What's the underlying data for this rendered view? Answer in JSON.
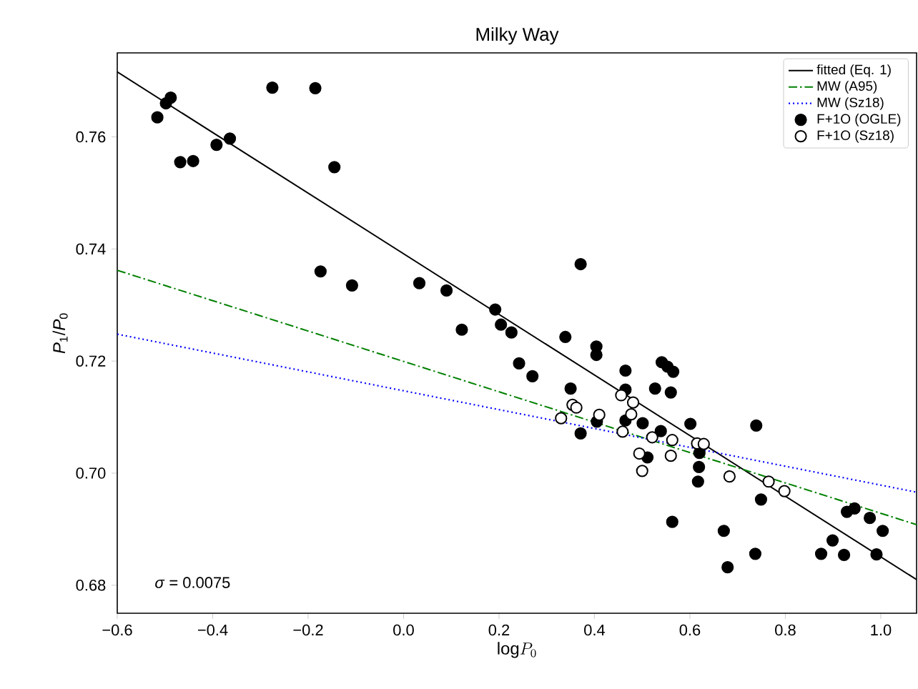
{
  "chart_data": {
    "type": "scatter",
    "title": "Milky Way",
    "xlabel": "\\mathrm{log}P_{0}",
    "ylabel": "*P*$_{1}$/*P*$_{0}$",
    "xlim": [
      -0.6,
      1.075
    ],
    "ylim": [
      0.675,
      0.775
    ],
    "xticks": [
      {
        "value": -0.6,
        "label": "−0.6"
      },
      {
        "value": -0.4,
        "label": "−0.4"
      },
      {
        "value": -0.2,
        "label": "−0.2"
      },
      {
        "value": 0.0,
        "label": "0.0"
      },
      {
        "value": 0.2,
        "label": "0.2"
      },
      {
        "value": 0.4,
        "label": "0.4"
      },
      {
        "value": 0.6,
        "label": "0.6"
      },
      {
        "value": 0.8,
        "label": "0.8"
      },
      {
        "value": 1.0,
        "label": "1.0"
      }
    ],
    "yticks": [
      {
        "value": 0.68,
        "label": "0.68"
      },
      {
        "value": 0.7,
        "label": "0.70"
      },
      {
        "value": 0.72,
        "label": "0.72"
      },
      {
        "value": 0.74,
        "label": "0.74"
      },
      {
        "value": 0.76,
        "label": "0.76"
      }
    ],
    "legend": "top right",
    "grid": false,
    "annotations": [
      "*σ* = 0.0075"
    ],
    "series": [
      {
        "name": "fitted (Eq. 1)",
        "type": "line",
        "color": "#000000",
        "line_style": "solid",
        "marker": "none",
        "x": [
          -0.6,
          1.075
        ],
        "values": [
          0.7716,
          0.681
        ]
      },
      {
        "name": "MW (A95)",
        "type": "line",
        "color": "#008000",
        "line_style": "dashdot",
        "marker": "none",
        "x": [
          -0.6,
          1.075
        ],
        "values": [
          0.7362,
          0.6908
        ]
      },
      {
        "name": "MW (Sz18)",
        "type": "line",
        "color": "#0000ff",
        "line_style": "dotted",
        "marker": "none",
        "x": [
          -0.6,
          1.075
        ],
        "values": [
          0.7248,
          0.6966
        ]
      },
      {
        "name": "F+1O (OGLE)",
        "color": "#000000",
        "marker": "circle",
        "x": [
          -0.516,
          -0.498,
          -0.488,
          -0.468,
          -0.441,
          -0.392,
          -0.364,
          -0.275,
          -0.185,
          -0.145,
          -0.174,
          -0.108,
          0.033,
          0.09,
          0.122,
          0.371,
          0.192,
          0.204,
          0.226,
          0.242,
          0.27,
          0.339,
          0.404,
          0.404,
          0.35,
          0.371,
          0.405,
          0.465,
          0.465,
          0.465,
          0.501,
          0.541,
          0.565,
          0.553,
          0.527,
          0.56,
          0.539,
          0.511,
          0.601,
          0.62,
          0.619,
          0.617,
          0.739,
          0.563,
          0.671,
          0.679,
          0.737,
          0.749,
          0.875,
          0.899,
          0.923,
          0.929,
          0.945,
          0.977,
          1.004,
          0.991
        ],
        "values": [
          0.7635,
          0.766,
          0.767,
          0.7555,
          0.7557,
          0.7586,
          0.7597,
          0.7688,
          0.7687,
          0.7546,
          0.736,
          0.7335,
          0.7339,
          0.7326,
          0.7256,
          0.7373,
          0.7292,
          0.7265,
          0.7251,
          0.7196,
          0.7173,
          0.7243,
          0.7226,
          0.7211,
          0.7151,
          0.7071,
          0.7092,
          0.7183,
          0.7149,
          0.7094,
          0.7089,
          0.7198,
          0.7181,
          0.719,
          0.7151,
          0.7144,
          0.7075,
          0.7028,
          0.7088,
          0.7036,
          0.7011,
          0.6985,
          0.7085,
          0.6913,
          0.6897,
          0.6832,
          0.6856,
          0.6953,
          0.6856,
          0.688,
          0.6854,
          0.6931,
          0.6937,
          0.692,
          0.6897,
          0.6855
        ]
      },
      {
        "name": "F+1O (Sz18)",
        "color": "#ffffff",
        "marker": "circle",
        "x": [
          0.33,
          0.354,
          0.362,
          0.41,
          0.459,
          0.456,
          0.481,
          0.477,
          0.521,
          0.494,
          0.5,
          0.56,
          0.563,
          0.615,
          0.629,
          0.683,
          0.765,
          0.798
        ],
        "values": [
          0.7098,
          0.7122,
          0.7117,
          0.7104,
          0.7074,
          0.7139,
          0.7126,
          0.7105,
          0.7064,
          0.7035,
          0.7004,
          0.7031,
          0.7059,
          0.7053,
          0.7052,
          0.6994,
          0.6985,
          0.6968
        ]
      }
    ]
  }
}
